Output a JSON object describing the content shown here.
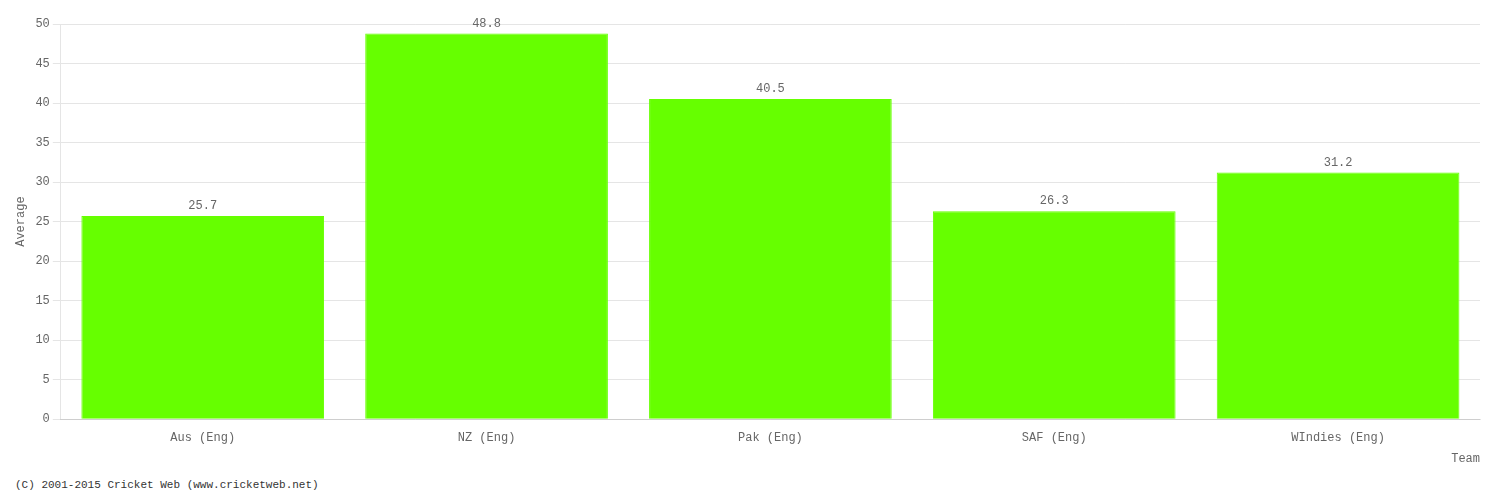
{
  "chart_data": {
    "type": "bar",
    "categories": [
      "Aus (Eng)",
      "NZ (Eng)",
      "Pak (Eng)",
      "SAF (Eng)",
      "WIndies (Eng)"
    ],
    "values": [
      25.7,
      48.8,
      40.5,
      26.3,
      31.2
    ],
    "color": "#66ff00",
    "xlabel": "Team",
    "ylabel": "Average",
    "ylim": [
      0,
      50
    ],
    "yticks": [
      0,
      5,
      10,
      15,
      20,
      25,
      30,
      35,
      40,
      45,
      50
    ],
    "grid": true,
    "data_labels": true,
    "annotation": "(C) 2001-2015 Cricket Web (www.cricketweb.net)"
  }
}
